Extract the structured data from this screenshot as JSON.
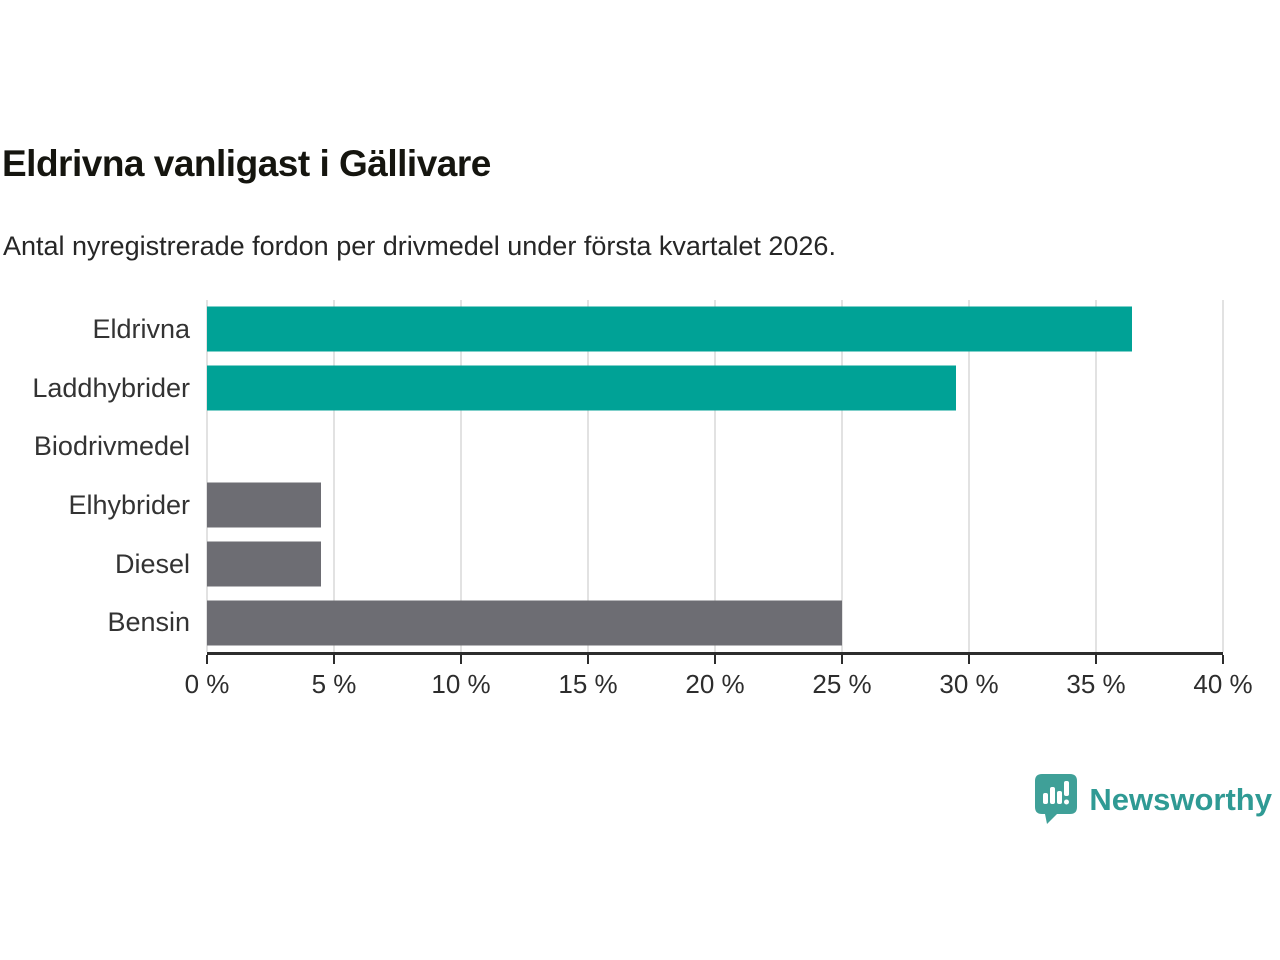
{
  "chart_data": {
    "type": "bar",
    "orientation": "horizontal",
    "title": "Eldrivna vanligast i Gällivare",
    "subtitle": "Antal nyregistrerade fordon per drivmedel under första kvartalet 2026.",
    "categories": [
      "Eldrivna",
      "Laddhybrider",
      "Biodrivmedel",
      "Elhybrider",
      "Diesel",
      "Bensin"
    ],
    "values": [
      36.4,
      29.5,
      0,
      4.5,
      4.5,
      25.0
    ],
    "bar_colors": [
      "#00a296",
      "#00a296",
      "#00a296",
      "#6d6d73",
      "#6d6d73",
      "#6d6d73"
    ],
    "xlim": [
      0,
      40
    ],
    "xticks": [
      0,
      5,
      10,
      15,
      20,
      25,
      30,
      35,
      40
    ],
    "xtick_suffix": " %",
    "xlabel": "",
    "ylabel": "",
    "grid": "vertical",
    "legend": "none"
  },
  "colors": {
    "teal": "#00a296",
    "gray": "#6d6d73",
    "gridline": "#e2e2e2",
    "axis": "#2d2d2d",
    "brand": "#2f9a94",
    "logo_bubble": "#3fa098"
  },
  "footer": {
    "brand": "Newsworthy",
    "logo_icon": "newsworthy-speech-bubble-bar-chart-icon"
  }
}
